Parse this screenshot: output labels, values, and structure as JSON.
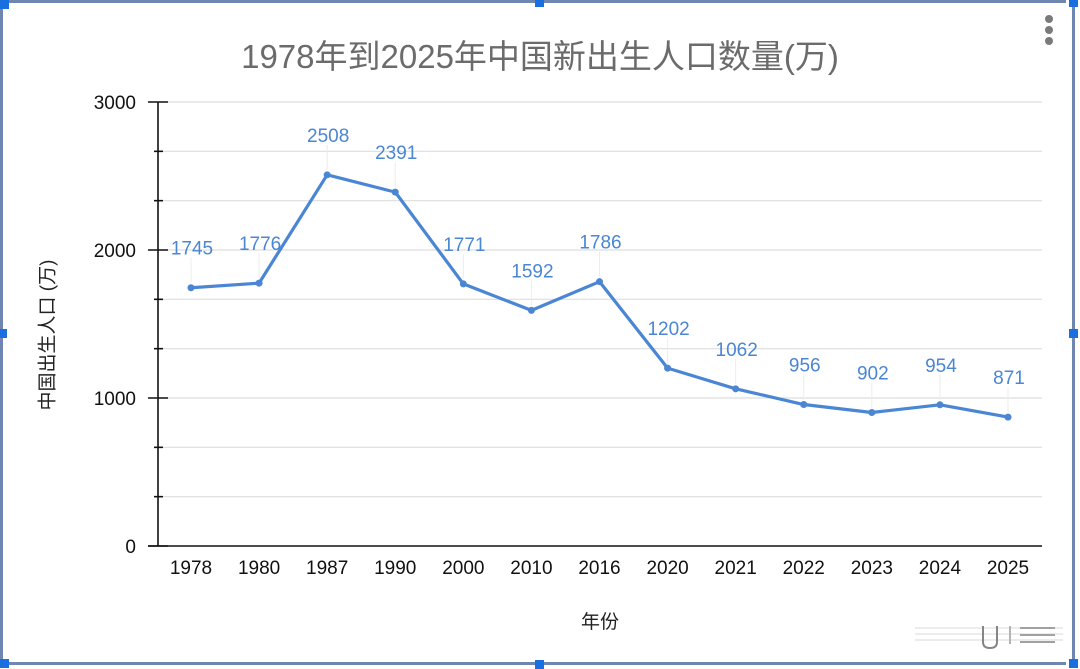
{
  "chart_data": {
    "type": "line",
    "title": "1978年到2025年中国新出生人口数量(万)",
    "xlabel": "年份",
    "ylabel": "中国出生人口 (万)",
    "categories": [
      "1978",
      "1980",
      "1987",
      "1990",
      "2000",
      "2010",
      "2016",
      "2020",
      "2021",
      "2022",
      "2023",
      "2024",
      "2025"
    ],
    "series": [
      {
        "name": "中国出生人口 (万)",
        "values": [
          1745,
          1776,
          2508,
          2391,
          1771,
          1592,
          1786,
          1202,
          1062,
          956,
          902,
          954,
          871
        ],
        "color": "#4a86d4"
      }
    ],
    "ylim": [
      0,
      3000
    ],
    "y_major_ticks": [
      0,
      1000,
      2000,
      3000
    ],
    "y_minor_divisions": 3,
    "grid": true,
    "data_labels": true,
    "legend": "none"
  },
  "menu": {
    "icon": "more-vert-icon"
  },
  "colors": {
    "line": "#4a86d4",
    "label": "#4a86d4",
    "title": "#6b6b6b",
    "axis": "#111111",
    "grid": "#dedede",
    "selection": "#1a6fe0",
    "selection_border": "#6f86b0"
  }
}
